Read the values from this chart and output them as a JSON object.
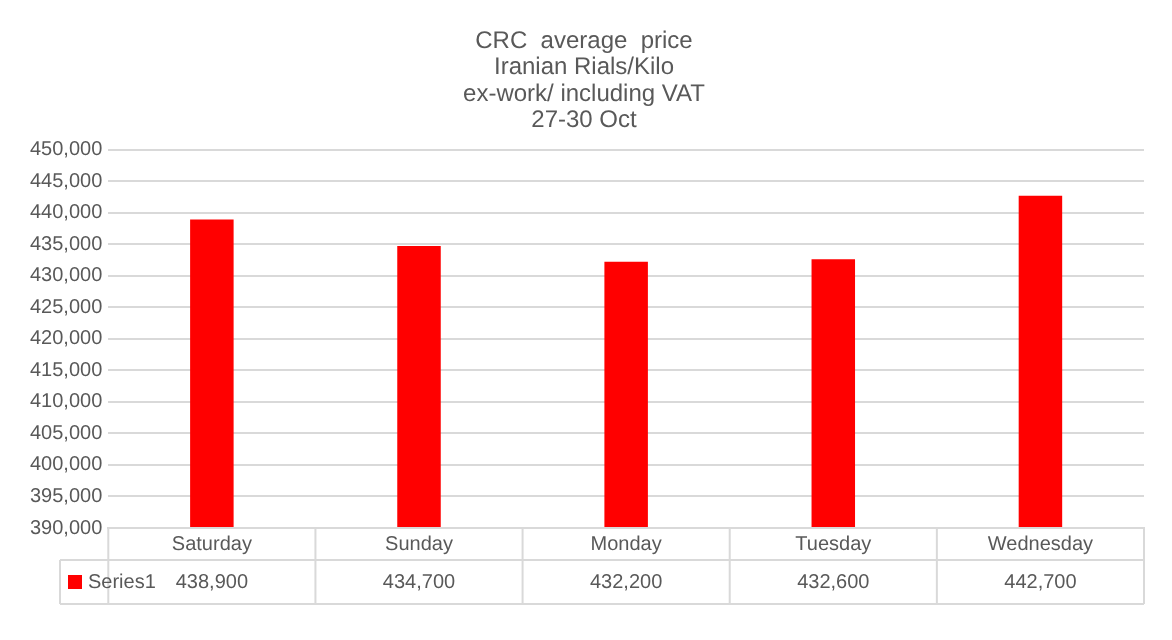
{
  "chart_data": {
    "type": "bar",
    "title": "CRC  average  price\nIranian Rials/Kilo\nex-work/ including VAT\n27-30 Oct",
    "categories": [
      "Saturday",
      "Sunday",
      "Monday",
      "Tuesday",
      "Wednesday"
    ],
    "series": [
      {
        "name": "Series1",
        "color": "#ff0000",
        "values": [
          438900,
          434700,
          432200,
          432600,
          442700
        ],
        "value_labels": [
          "438,900",
          "434,700",
          "432,200",
          "432,600",
          "442,700"
        ]
      }
    ],
    "ylim": [
      390000,
      450000
    ],
    "yticks": [
      {
        "value": 390000,
        "label": "390,000"
      },
      {
        "value": 395000,
        "label": "395,000"
      },
      {
        "value": 400000,
        "label": "400,000"
      },
      {
        "value": 405000,
        "label": "405,000"
      },
      {
        "value": 410000,
        "label": "410,000"
      },
      {
        "value": 415000,
        "label": "415,000"
      },
      {
        "value": 420000,
        "label": "420,000"
      },
      {
        "value": 425000,
        "label": "425,000"
      },
      {
        "value": 430000,
        "label": "430,000"
      },
      {
        "value": 435000,
        "label": "435,000"
      },
      {
        "value": 440000,
        "label": "440,000"
      },
      {
        "value": 445000,
        "label": "445,000"
      },
      {
        "value": 450000,
        "label": "450,000"
      }
    ],
    "grid": "y",
    "legend": "bottom"
  }
}
